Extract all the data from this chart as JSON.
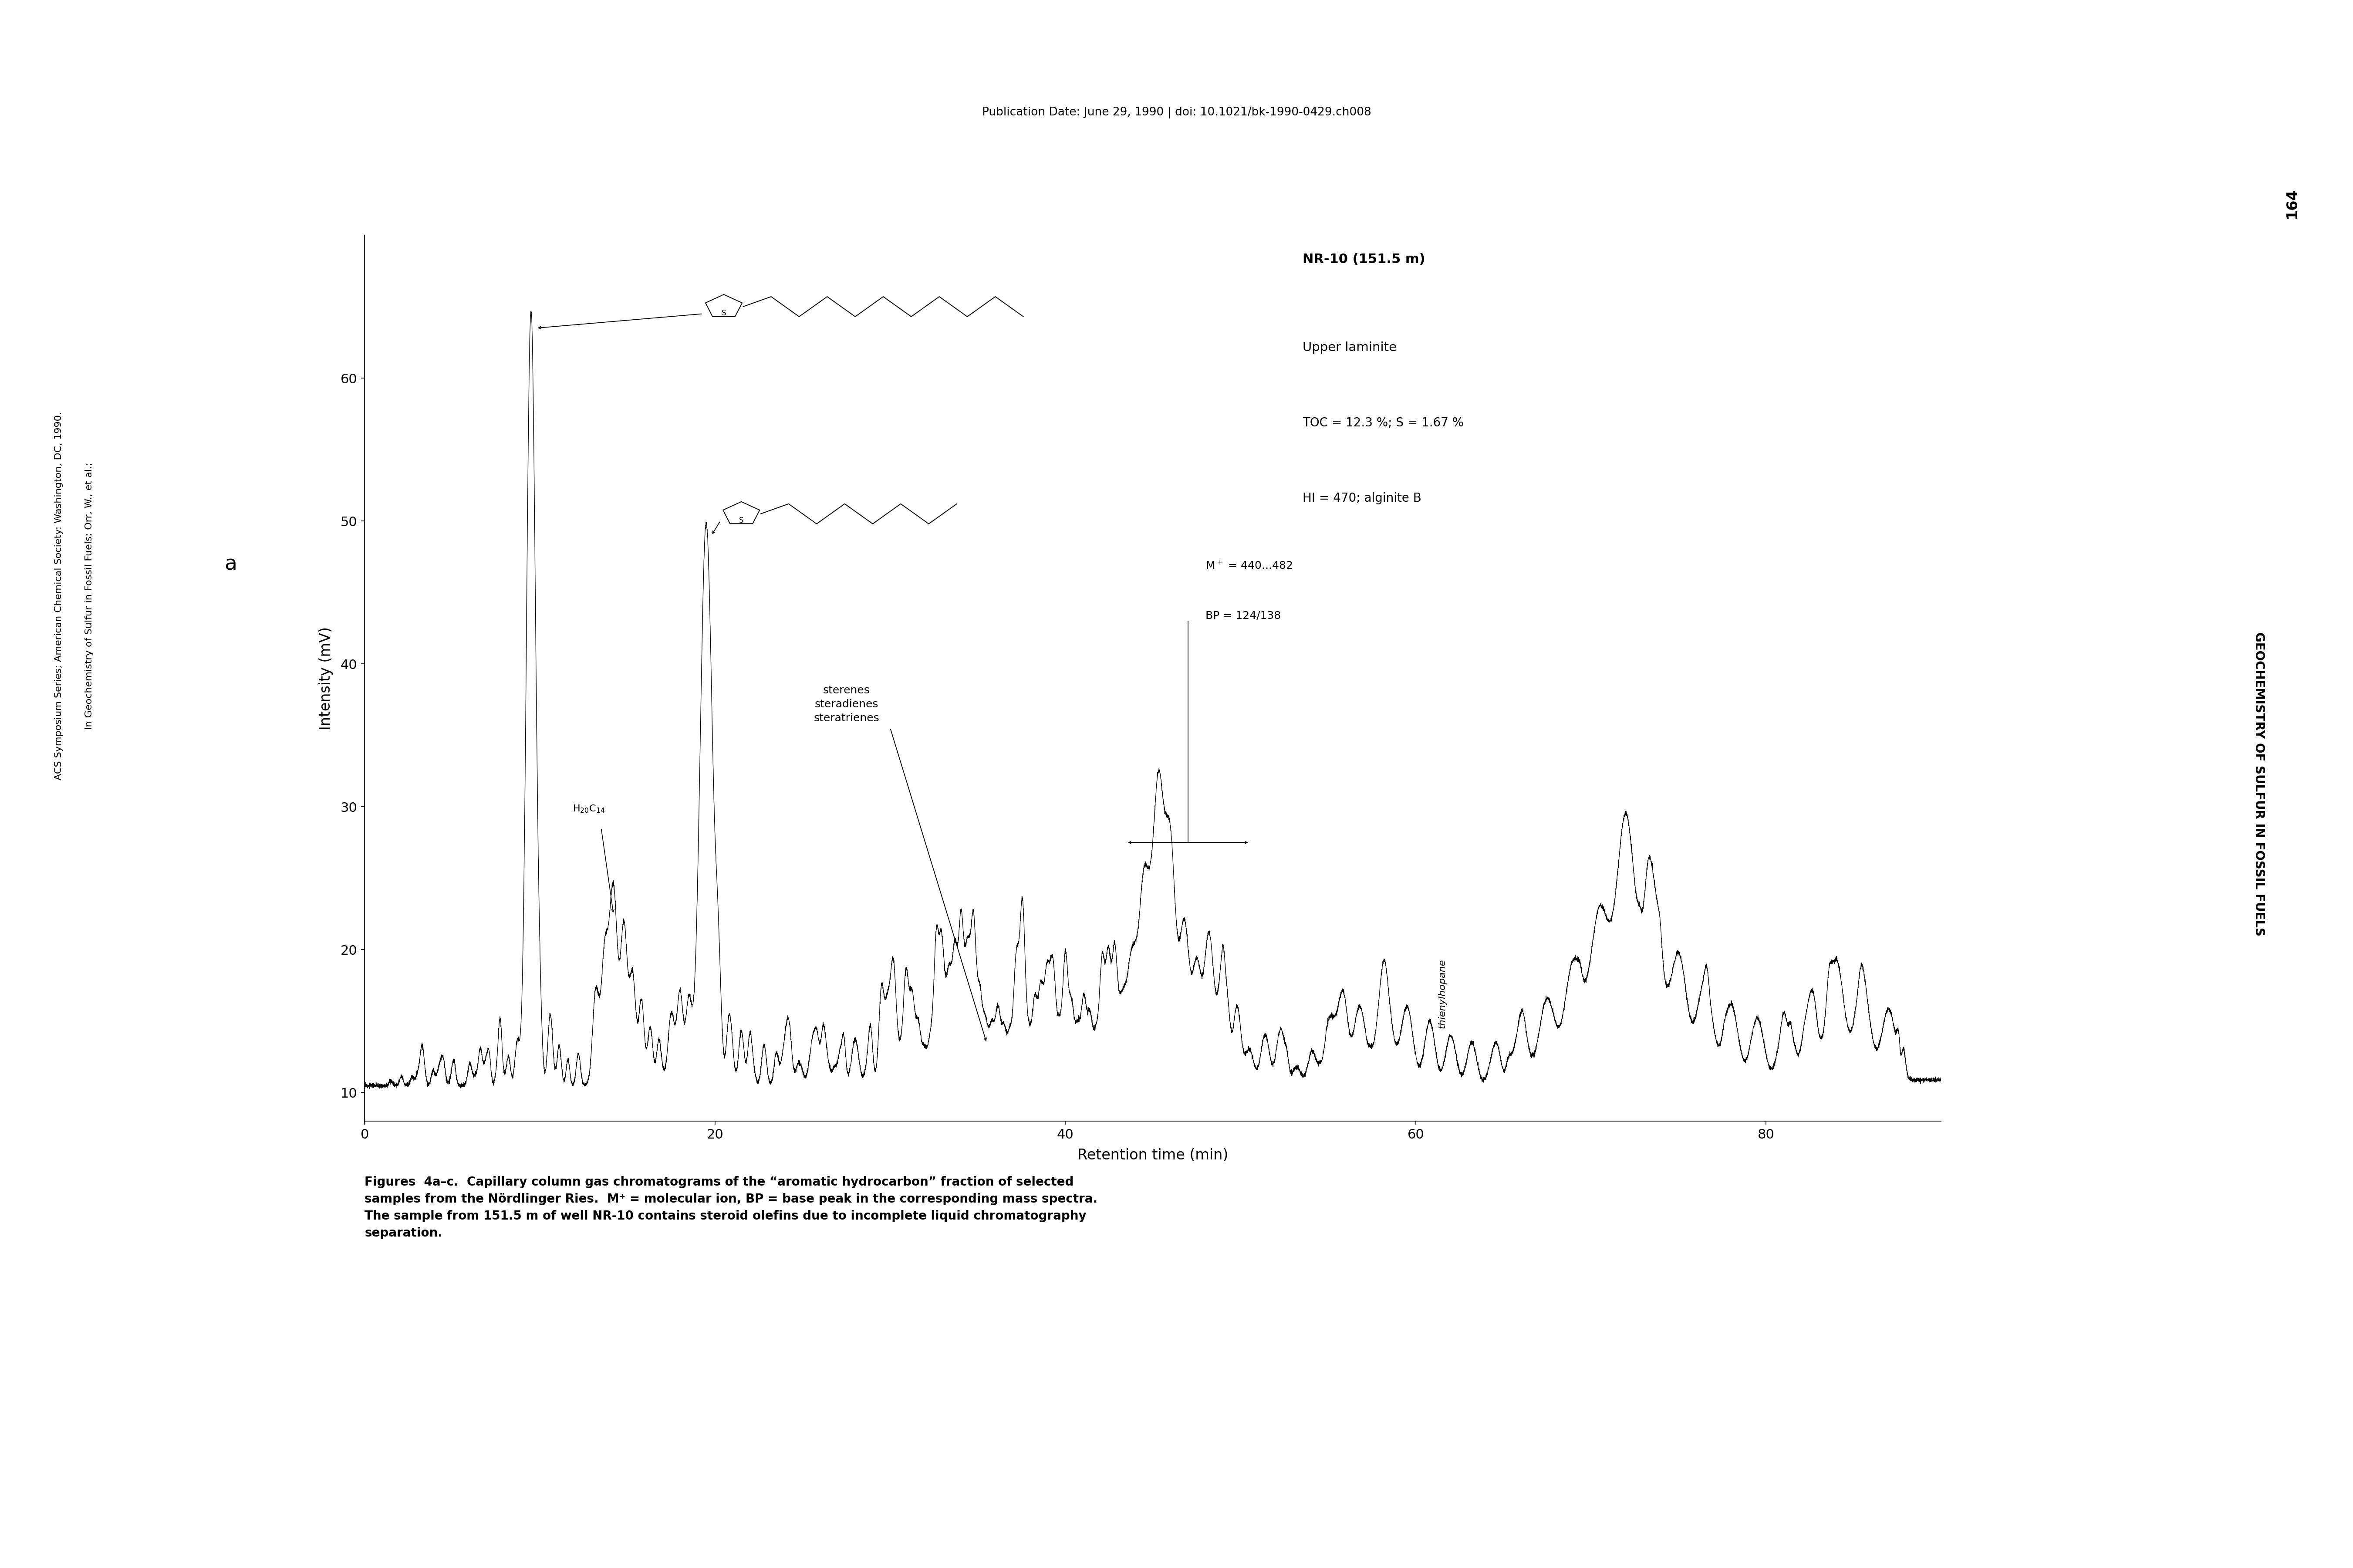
{
  "title": "Publication Date: June 29, 1990 | doi: 10.1021/bk-1990-0429.ch008",
  "xlabel": "Retention time (min)",
  "ylabel": "Intensity (mV)",
  "xlim": [
    0,
    90
  ],
  "ylim": [
    8,
    70
  ],
  "yticks": [
    10,
    20,
    30,
    40,
    50,
    60
  ],
  "xticks": [
    0,
    20,
    40,
    60,
    80
  ],
  "panel_label": "a",
  "legend_lines": [
    "NR-10 (151.5 m)",
    "Upper laminite",
    "TOC = 12.3 %; S = 1.67 %",
    "HI = 470; alginite B"
  ],
  "caption_bold": "Figures  4a–c.",
  "caption_normal": "  Capillary column gas chromatograms of the “aromatic hydrocarbon” fraction of selected samples from the Nördlinger Ries.  M⁺ = molecular ion, BP = base peak in the corresponding mass spectra. The sample from 151.5 m of well NR-10 contains steroid olefins due to incomplete liquid chromatography separation.",
  "side_text_left1": "In Geochemistry of Sulfur in Fossil Fuels; Orr, W., et al.;",
  "side_text_left2": "ACS Symposium Series; American Chemical Society: Washington, DC, 1990.",
  "side_text_right": "GEOCHEMISTRY OF SULFUR IN FOSSIL FUELS",
  "page_number": "164",
  "background_color": "#ffffff",
  "line_color": "#000000",
  "struct1_ring_x": 19.5,
  "struct1_ring_y": 65.0,
  "struct2_ring_x": 20.5,
  "struct2_ring_y": 50.5,
  "peak1_x": 9.5,
  "peak1_height": 63.0,
  "peak2_x": 19.5,
  "peak2_height": 48.0
}
